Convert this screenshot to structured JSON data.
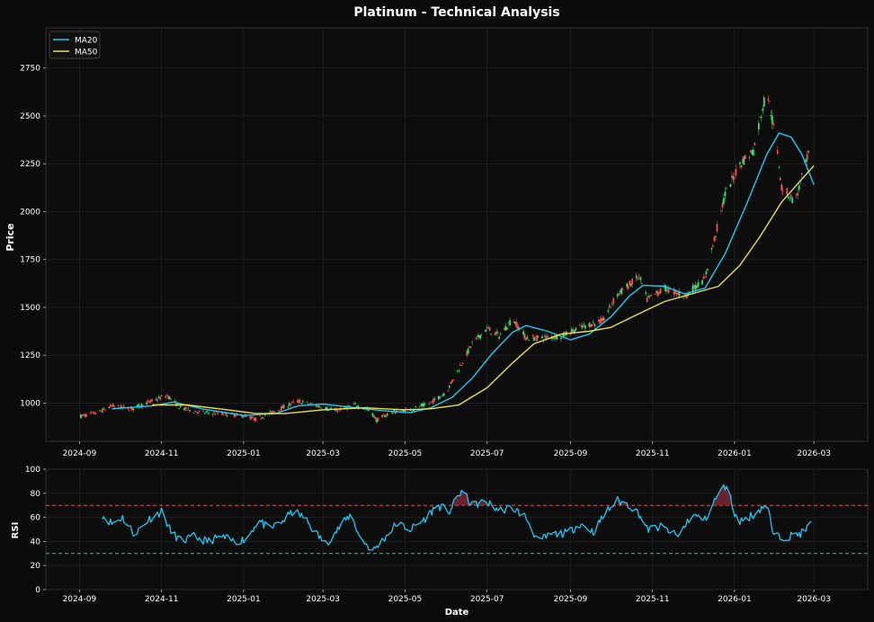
{
  "chart_data": [
    {
      "type": "candlestick",
      "title": "Platinum - Technical Analysis",
      "xlabel": "",
      "ylabel": "Price",
      "ylim": [
        800,
        2960
      ],
      "yticks": [
        1000,
        1250,
        1500,
        1750,
        2000,
        2250,
        2500,
        2750
      ],
      "xlim": [
        "2024-08-07",
        "2026-04-10"
      ],
      "xticks": [
        "2024-09",
        "2024-11",
        "2025-01",
        "2025-03",
        "2025-05",
        "2025-07",
        "2025-09",
        "2025-11",
        "2026-01",
        "2026-03"
      ],
      "legend": {
        "position": "top-left",
        "entries": [
          "MA20",
          "MA50"
        ]
      },
      "colors": {
        "up": "#2ee37a",
        "down": "#f05252",
        "ma20": "#1ec8f0",
        "ma50": "#e8e04a"
      },
      "grid": true,
      "ohlc_points": [
        [
          "2024-09-01",
          930
        ],
        [
          "2024-09-15",
          950
        ],
        [
          "2024-09-25",
          985
        ],
        [
          "2024-10-10",
          970
        ],
        [
          "2024-10-25",
          1010
        ],
        [
          "2024-11-05",
          1040
        ],
        [
          "2024-11-15",
          975
        ],
        [
          "2024-12-01",
          950
        ],
        [
          "2024-12-15",
          945
        ],
        [
          "2025-01-01",
          935
        ],
        [
          "2025-01-10",
          915
        ],
        [
          "2025-01-25",
          960
        ],
        [
          "2025-02-10",
          1010
        ],
        [
          "2025-02-25",
          985
        ],
        [
          "2025-03-10",
          960
        ],
        [
          "2025-03-25",
          990
        ],
        [
          "2025-04-05",
          960
        ],
        [
          "2025-04-10",
          910
        ],
        [
          "2025-04-20",
          950
        ],
        [
          "2025-05-05",
          965
        ],
        [
          "2025-05-20",
          1000
        ],
        [
          "2025-06-01",
          1060
        ],
        [
          "2025-06-10",
          1180
        ],
        [
          "2025-06-20",
          1310
        ],
        [
          "2025-07-01",
          1390
        ],
        [
          "2025-07-10",
          1350
        ],
        [
          "2025-07-20",
          1440
        ],
        [
          "2025-07-30",
          1340
        ],
        [
          "2025-08-10",
          1340
        ],
        [
          "2025-08-25",
          1350
        ],
        [
          "2025-09-10",
          1400
        ],
        [
          "2025-09-25",
          1430
        ],
        [
          "2025-10-05",
          1560
        ],
        [
          "2025-10-15",
          1620
        ],
        [
          "2025-10-22",
          1660
        ],
        [
          "2025-10-28",
          1540
        ],
        [
          "2025-11-10",
          1600
        ],
        [
          "2025-11-25",
          1560
        ],
        [
          "2025-12-10",
          1650
        ],
        [
          "2025-12-25",
          2090
        ],
        [
          "2026-01-05",
          2250
        ],
        [
          "2026-01-15",
          2320
        ],
        [
          "2026-01-25",
          2640
        ],
        [
          "2026-02-01",
          2360
        ],
        [
          "2026-02-05",
          2130
        ],
        [
          "2026-02-15",
          2050
        ],
        [
          "2026-02-25",
          2300
        ]
      ],
      "series": [
        {
          "name": "MA20",
          "points": [
            [
              "2024-09-25",
              970
            ],
            [
              "2024-10-25",
              985
            ],
            [
              "2024-11-10",
              1005
            ],
            [
              "2024-12-01",
              970
            ],
            [
              "2025-01-01",
              935
            ],
            [
              "2025-01-25",
              945
            ],
            [
              "2025-02-10",
              985
            ],
            [
              "2025-03-01",
              995
            ],
            [
              "2025-03-20",
              980
            ],
            [
              "2025-04-15",
              960
            ],
            [
              "2025-05-05",
              950
            ],
            [
              "2025-05-20",
              975
            ],
            [
              "2025-06-05",
              1030
            ],
            [
              "2025-06-20",
              1130
            ],
            [
              "2025-07-05",
              1260
            ],
            [
              "2025-07-20",
              1370
            ],
            [
              "2025-07-30",
              1405
            ],
            [
              "2025-08-15",
              1375
            ],
            [
              "2025-09-01",
              1330
            ],
            [
              "2025-09-15",
              1360
            ],
            [
              "2025-10-01",
              1450
            ],
            [
              "2025-10-15",
              1560
            ],
            [
              "2025-10-25",
              1615
            ],
            [
              "2025-11-10",
              1610
            ],
            [
              "2025-11-25",
              1570
            ],
            [
              "2025-12-10",
              1600
            ],
            [
              "2025-12-25",
              1780
            ],
            [
              "2026-01-10",
              2040
            ],
            [
              "2026-01-25",
              2300
            ],
            [
              "2026-02-03",
              2410
            ],
            [
              "2026-02-12",
              2390
            ],
            [
              "2026-02-20",
              2300
            ],
            [
              "2026-03-01",
              2140
            ]
          ]
        },
        {
          "name": "MA50",
          "points": [
            [
              "2024-10-25",
              990
            ],
            [
              "2024-11-20",
              990
            ],
            [
              "2024-12-20",
              965
            ],
            [
              "2025-01-10",
              945
            ],
            [
              "2025-02-01",
              945
            ],
            [
              "2025-03-01",
              965
            ],
            [
              "2025-04-01",
              975
            ],
            [
              "2025-05-01",
              965
            ],
            [
              "2025-05-20",
              970
            ],
            [
              "2025-06-10",
              990
            ],
            [
              "2025-07-01",
              1080
            ],
            [
              "2025-07-20",
              1210
            ],
            [
              "2025-08-05",
              1310
            ],
            [
              "2025-08-25",
              1360
            ],
            [
              "2025-09-15",
              1375
            ],
            [
              "2025-10-01",
              1395
            ],
            [
              "2025-10-20",
              1460
            ],
            [
              "2025-11-10",
              1530
            ],
            [
              "2025-11-30",
              1570
            ],
            [
              "2025-12-20",
              1610
            ],
            [
              "2026-01-05",
              1720
            ],
            [
              "2026-01-20",
              1870
            ],
            [
              "2026-02-05",
              2050
            ],
            [
              "2026-02-15",
              2130
            ],
            [
              "2026-03-01",
              2240
            ]
          ]
        }
      ]
    },
    {
      "type": "line",
      "title": "",
      "xlabel": "Date",
      "ylabel": "RSI",
      "ylim": [
        0,
        100
      ],
      "yticks": [
        0,
        20,
        40,
        60,
        80,
        100
      ],
      "xlim": [
        "2024-08-07",
        "2026-04-10"
      ],
      "xticks": [
        "2024-09",
        "2024-11",
        "2025-01",
        "2025-03",
        "2025-05",
        "2025-07",
        "2025-09",
        "2025-11",
        "2026-01",
        "2026-03"
      ],
      "reference_lines": [
        {
          "value": 70,
          "color": "#e05555"
        },
        {
          "value": 30,
          "color": "#2ecc71"
        }
      ],
      "colors": {
        "rsi": "#1ec8f0",
        "overbought_fill": "#8a2b3a"
      },
      "grid": true,
      "series": [
        {
          "name": "",
          "points": [
            [
              "2024-09-18",
              62
            ],
            [
              "2024-09-25",
              55
            ],
            [
              "2024-10-03",
              60
            ],
            [
              "2024-10-12",
              46
            ],
            [
              "2024-10-22",
              58
            ],
            [
              "2024-11-01",
              65
            ],
            [
              "2024-11-08",
              48
            ],
            [
              "2024-11-16",
              40
            ],
            [
              "2024-11-25",
              44
            ],
            [
              "2024-12-05",
              40
            ],
            [
              "2024-12-15",
              44
            ],
            [
              "2024-12-25",
              40
            ],
            [
              "2025-01-03",
              42
            ],
            [
              "2025-01-12",
              58
            ],
            [
              "2025-01-20",
              50
            ],
            [
              "2025-01-30",
              57
            ],
            [
              "2025-02-07",
              65
            ],
            [
              "2025-02-15",
              60
            ],
            [
              "2025-02-23",
              48
            ],
            [
              "2025-03-03",
              38
            ],
            [
              "2025-03-12",
              50
            ],
            [
              "2025-03-22",
              63
            ],
            [
              "2025-03-28",
              44
            ],
            [
              "2025-04-07",
              32
            ],
            [
              "2025-04-15",
              42
            ],
            [
              "2025-04-25",
              55
            ],
            [
              "2025-05-05",
              50
            ],
            [
              "2025-05-15",
              58
            ],
            [
              "2025-05-25",
              70
            ],
            [
              "2025-06-03",
              65
            ],
            [
              "2025-06-12",
              82
            ],
            [
              "2025-06-20",
              70
            ],
            [
              "2025-06-30",
              73
            ],
            [
              "2025-07-10",
              66
            ],
            [
              "2025-07-20",
              68
            ],
            [
              "2025-07-30",
              60
            ],
            [
              "2025-08-08",
              40
            ],
            [
              "2025-08-18",
              46
            ],
            [
              "2025-08-30",
              47
            ],
            [
              "2025-09-08",
              55
            ],
            [
              "2025-09-18",
              48
            ],
            [
              "2025-09-28",
              65
            ],
            [
              "2025-10-06",
              74
            ],
            [
              "2025-10-15",
              70
            ],
            [
              "2025-10-22",
              63
            ],
            [
              "2025-10-28",
              50
            ],
            [
              "2025-11-08",
              52
            ],
            [
              "2025-11-20",
              44
            ],
            [
              "2025-11-30",
              62
            ],
            [
              "2025-12-10",
              58
            ],
            [
              "2025-12-20",
              80
            ],
            [
              "2025-12-26",
              87
            ],
            [
              "2026-01-03",
              56
            ],
            [
              "2026-01-15",
              62
            ],
            [
              "2026-01-25",
              72
            ],
            [
              "2026-01-30",
              44
            ],
            [
              "2026-02-10",
              44
            ],
            [
              "2026-02-20",
              47
            ],
            [
              "2026-03-01",
              57
            ]
          ]
        }
      ]
    }
  ]
}
